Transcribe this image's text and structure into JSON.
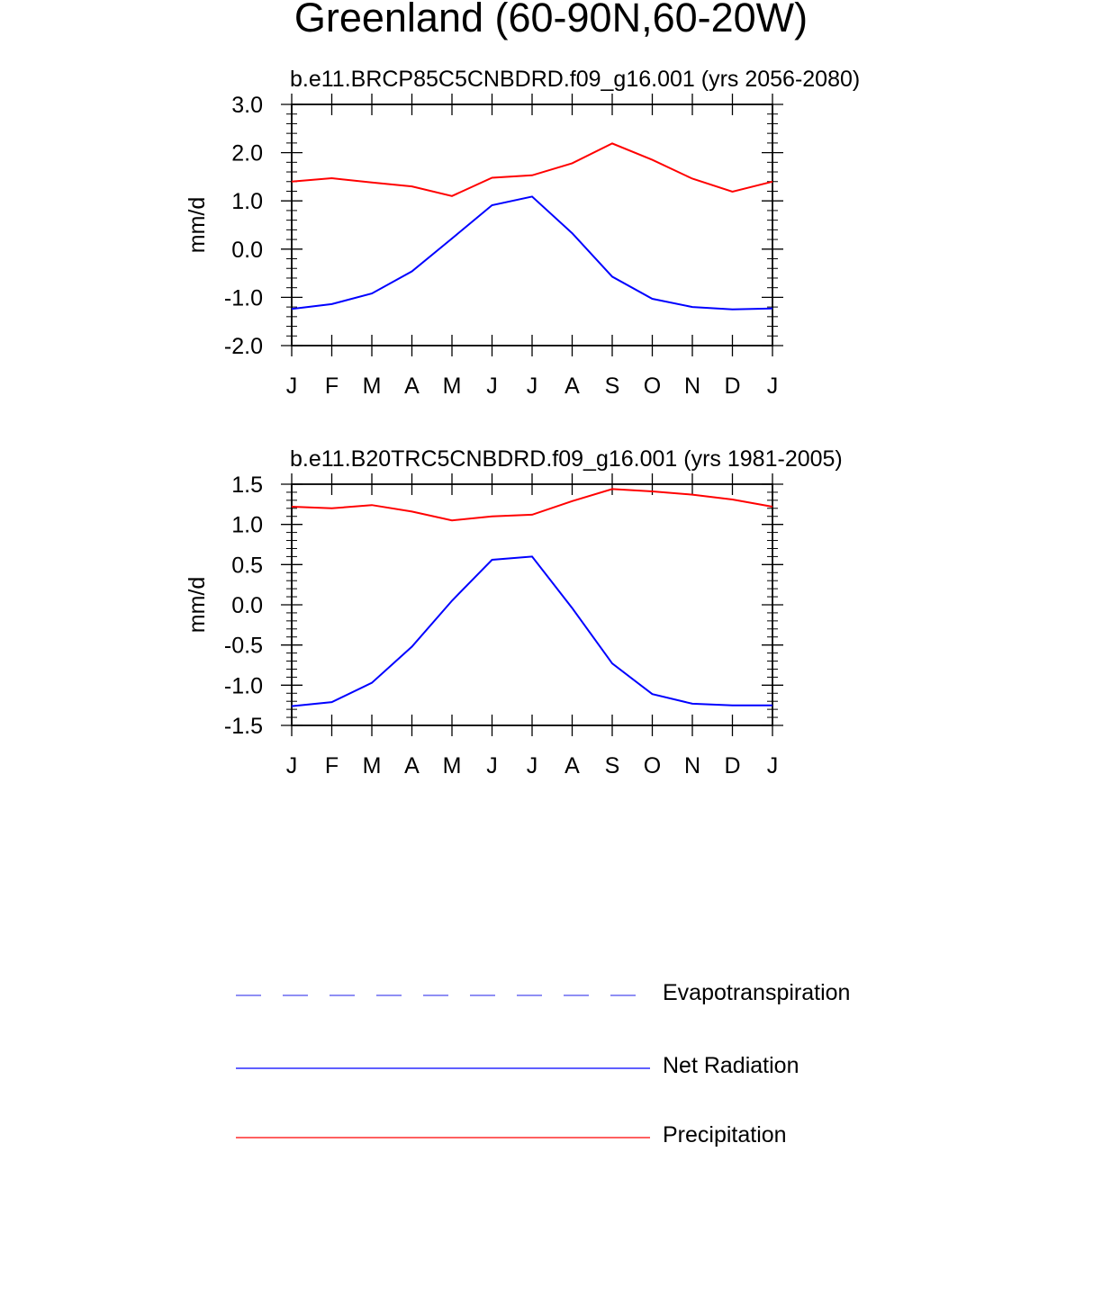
{
  "title": "Greenland (60-90N,60-20W)",
  "colors": {
    "net_radiation": "#0000ff",
    "precipitation": "#ff0000",
    "evapotranspiration": "#6a6af0",
    "axis": "#000000"
  },
  "chart_data": [
    {
      "type": "line",
      "title": "b.e11.BRCP85C5CNBDRD.f09_g16.001 (yrs 2056-2080)",
      "xlabel": "",
      "ylabel": "mm/d",
      "categories": [
        "J",
        "F",
        "M",
        "A",
        "M",
        "J",
        "J",
        "A",
        "S",
        "O",
        "N",
        "D",
        "J"
      ],
      "ylim": [
        -2.0,
        3.0
      ],
      "yticks": [
        -2.0,
        -1.0,
        0.0,
        1.0,
        2.0,
        3.0
      ],
      "ytick_labels": [
        "-2.0",
        "-1.0",
        "0.0",
        "1.0",
        "2.0",
        "3.0"
      ],
      "series": [
        {
          "name": "Precipitation",
          "color": "#ff0000",
          "values": [
            1.4,
            1.47,
            1.38,
            1.3,
            1.1,
            1.48,
            1.53,
            1.78,
            2.19,
            1.85,
            1.46,
            1.19,
            1.4
          ]
        },
        {
          "name": "Net Radiation",
          "color": "#0000ff",
          "values": [
            -1.24,
            -1.14,
            -0.92,
            -0.46,
            0.22,
            0.91,
            1.09,
            0.33,
            -0.57,
            -1.03,
            -1.2,
            -1.25,
            -1.23
          ]
        }
      ]
    },
    {
      "type": "line",
      "title": "b.e11.B20TRC5CNBDRD.f09_g16.001 (yrs 1981-2005)",
      "xlabel": "",
      "ylabel": "mm/d",
      "categories": [
        "J",
        "F",
        "M",
        "A",
        "M",
        "J",
        "J",
        "A",
        "S",
        "O",
        "N",
        "D",
        "J"
      ],
      "ylim": [
        -1.5,
        1.5
      ],
      "yticks": [
        -1.5,
        -1.0,
        -0.5,
        0.0,
        0.5,
        1.0,
        1.5
      ],
      "ytick_labels": [
        "-1.5",
        "-1.0",
        "-0.5",
        "0.0",
        "0.5",
        "1.0",
        "1.5"
      ],
      "series": [
        {
          "name": "Precipitation",
          "color": "#ff0000",
          "values": [
            1.22,
            1.2,
            1.24,
            1.16,
            1.05,
            1.1,
            1.12,
            1.29,
            1.44,
            1.41,
            1.37,
            1.31,
            1.22
          ]
        },
        {
          "name": "Net Radiation",
          "color": "#0000ff",
          "values": [
            -1.26,
            -1.21,
            -0.97,
            -0.52,
            0.05,
            0.56,
            0.6,
            -0.04,
            -0.73,
            -1.11,
            -1.23,
            -1.25,
            -1.25
          ]
        }
      ]
    }
  ],
  "legend": [
    {
      "label": "Evapotranspiration",
      "color": "#6a6af0",
      "style": "dashed"
    },
    {
      "label": "Net Radiation",
      "color": "#0000ff",
      "style": "solid"
    },
    {
      "label": "Precipitation",
      "color": "#ff0000",
      "style": "solid"
    }
  ]
}
